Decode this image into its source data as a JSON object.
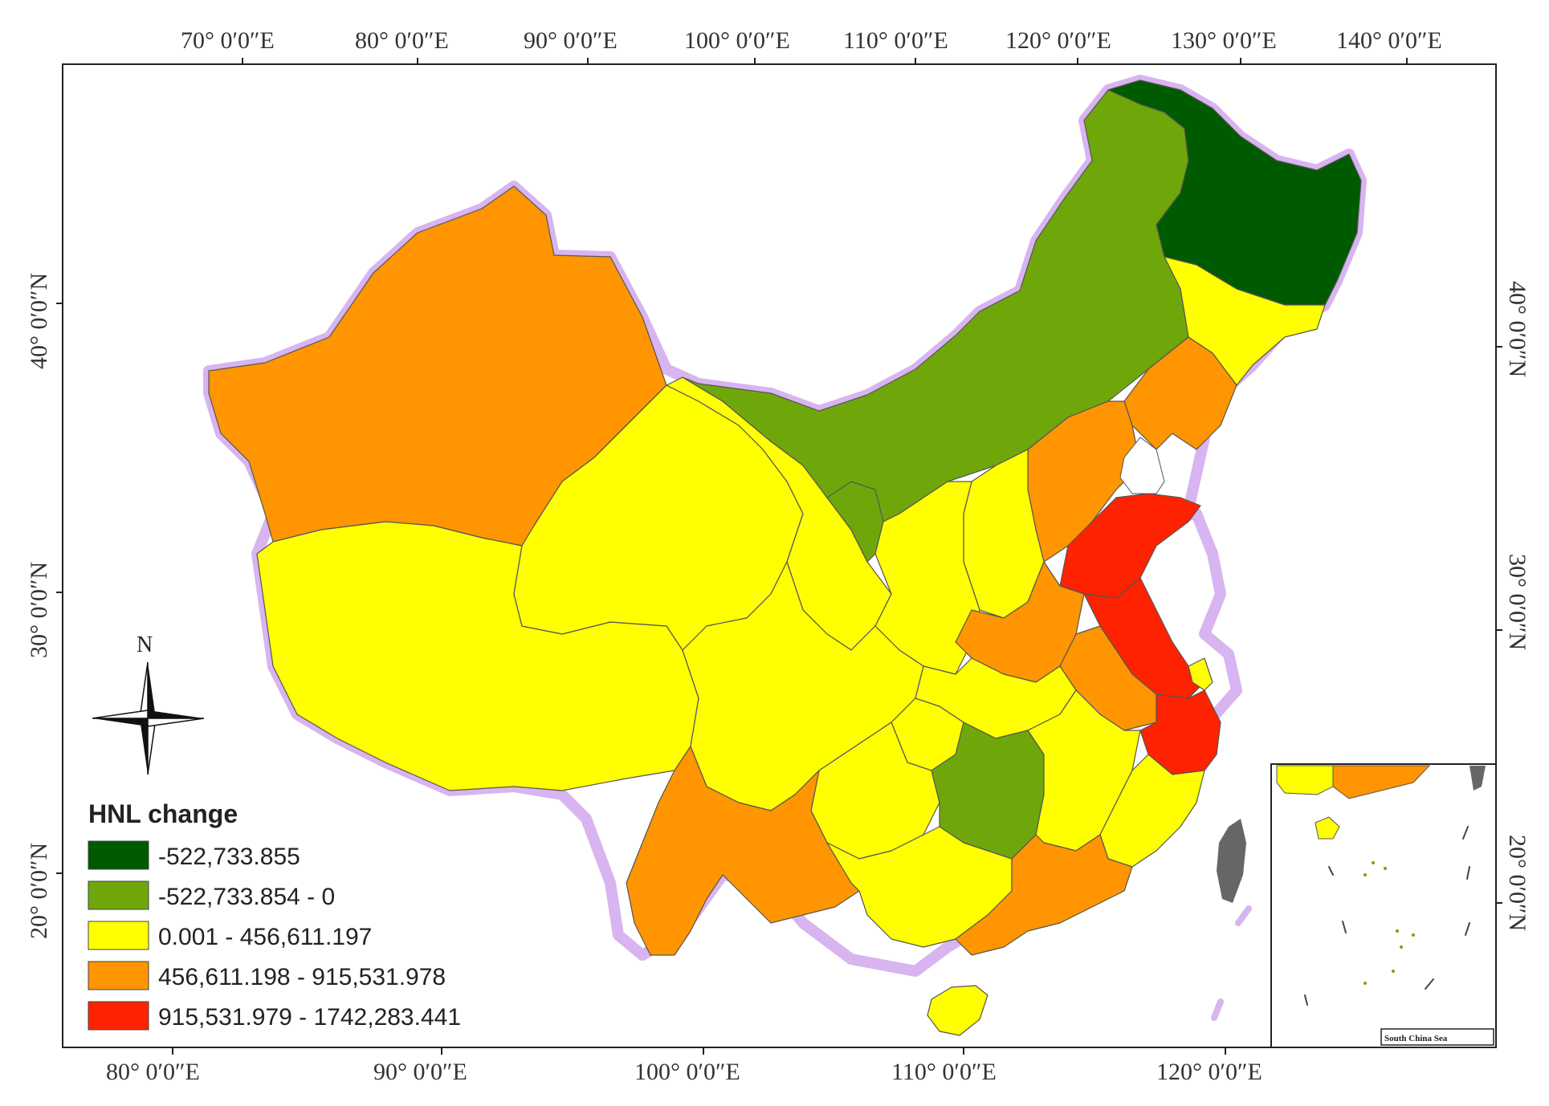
{
  "map": {
    "top_ticks": [
      "70°  0′0″E",
      "80°  0′0″E",
      "90°  0′0″E",
      "100°  0′0″E",
      "110°  0′0″E",
      "120°  0′0″E",
      "130°  0′0″E",
      "140°  0′0″E"
    ],
    "bottom_ticks": [
      "80°  0′0″E",
      "90°  0′0″E",
      "100°  0′0″E",
      "110°  0′0″E",
      "120°  0′0″E"
    ],
    "left_ticks": [
      "40°  0′0″N",
      "30°  0′0″N",
      "20°  0′0″N"
    ],
    "right_ticks": [
      "40°  0′0″N",
      "30°  0′0″N",
      "20°  0′0″N"
    ],
    "north_label": "N",
    "inset_label": "South China Sea",
    "legend": {
      "title": "HNL change",
      "classes": [
        {
          "label": "-522,733.855",
          "color": "#005a00"
        },
        {
          "label": "-522,733.854 - 0",
          "color": "#6fa70a"
        },
        {
          "label": "0.001 - 456,611.197",
          "color": "#ffff00"
        },
        {
          "label": "456,611.198 - 915,531.978",
          "color": "#ff9500"
        },
        {
          "label": "915,531.979 - 1742,283.441",
          "color": "#ff2200"
        }
      ]
    },
    "colors": {
      "border_halo": "#d8b4f0",
      "sea_gray": "#666666"
    }
  }
}
